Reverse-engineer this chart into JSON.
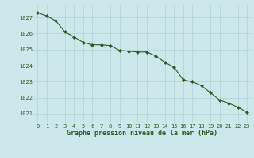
{
  "x": [
    0,
    1,
    2,
    3,
    4,
    5,
    6,
    7,
    8,
    9,
    10,
    11,
    12,
    13,
    14,
    15,
    16,
    17,
    18,
    19,
    20,
    21,
    22,
    23
  ],
  "y": [
    1027.3,
    1027.1,
    1026.8,
    1026.1,
    1025.8,
    1025.45,
    1025.3,
    1025.3,
    1025.25,
    1024.95,
    1024.9,
    1024.85,
    1024.85,
    1024.6,
    1024.2,
    1023.9,
    1023.1,
    1023.0,
    1022.75,
    1022.3,
    1021.85,
    1021.65,
    1021.4,
    1021.1
  ],
  "line_color": "#2d5a27",
  "marker": "D",
  "marker_size": 2.0,
  "bg_color": "#cce8ea",
  "grid_color": "#b0d4d6",
  "title": "Graphe pression niveau de la mer (hPa)",
  "title_color": "#2d5a27",
  "ylabel_ticks": [
    1021,
    1022,
    1023,
    1024,
    1025,
    1026,
    1027
  ],
  "xlim": [
    -0.5,
    23.5
  ],
  "ylim": [
    1020.4,
    1027.8
  ],
  "xlabel_ticks": [
    0,
    1,
    2,
    3,
    4,
    5,
    6,
    7,
    8,
    9,
    10,
    11,
    12,
    13,
    14,
    15,
    16,
    17,
    18,
    19,
    20,
    21,
    22,
    23
  ],
  "tick_fontsize": 5.0,
  "title_fontsize": 6.0,
  "linewidth": 0.8
}
